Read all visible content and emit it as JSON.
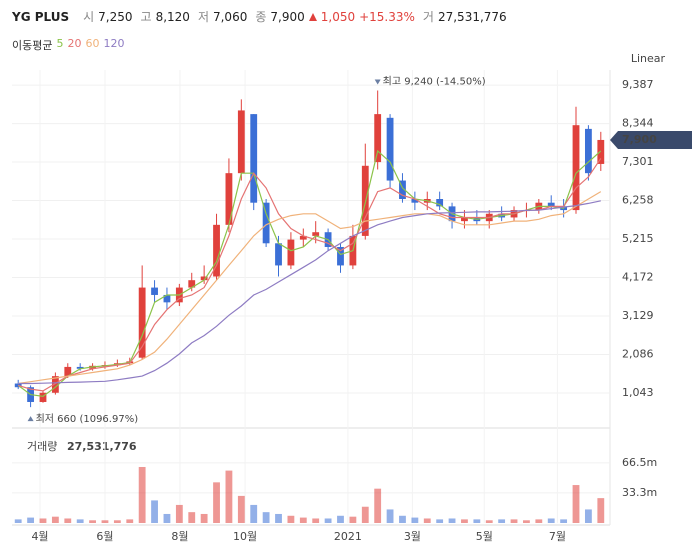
{
  "header": {
    "name": "YG PLUS",
    "open_label": "시",
    "open": "7,250",
    "high_label": "고",
    "high": "8,120",
    "low_label": "저",
    "low": "7,060",
    "close_label": "종",
    "close": "7,900",
    "change": "1,050",
    "change_pct": "+15.33%",
    "volume_label": "거",
    "volume": "27,531,776"
  },
  "chart_data": {
    "type": "candlestick",
    "scale_label": "Linear",
    "ma_title": "이동평균",
    "open": [
      1300,
      1200,
      800,
      1050,
      1500,
      1750,
      1700,
      1780,
      1800,
      1850,
      2000,
      3900,
      3700,
      3500,
      3900,
      4100,
      4200,
      5600,
      7000,
      8600,
      6200,
      5100,
      4500,
      5200,
      5300,
      5400,
      5000,
      4500,
      5300,
      7300,
      8500,
      6800,
      6300,
      6200,
      6300,
      6100,
      5700,
      5800,
      5700,
      5900,
      5800,
      6000,
      6000,
      6200,
      6100,
      6000,
      8200,
      7250
    ],
    "high": [
      1400,
      1250,
      1100,
      1600,
      1850,
      1850,
      1850,
      1900,
      1950,
      2000,
      4500,
      4100,
      3900,
      4000,
      4300,
      4500,
      5900,
      7400,
      9000,
      8600,
      6300,
      5300,
      5400,
      5500,
      5700,
      5500,
      5100,
      5600,
      7800,
      9240,
      8600,
      7000,
      6500,
      6500,
      6500,
      6200,
      6000,
      6000,
      6000,
      6100,
      6100,
      6200,
      6300,
      6400,
      6300,
      8800,
      8300,
      8120
    ],
    "low": [
      1150,
      660,
      780,
      1000,
      1450,
      1650,
      1650,
      1700,
      1750,
      1800,
      1950,
      3500,
      3300,
      3400,
      3800,
      4000,
      4100,
      5400,
      6800,
      6000,
      5000,
      4200,
      4400,
      5000,
      5100,
      4900,
      4300,
      4400,
      5200,
      7100,
      6600,
      6200,
      6000,
      6000,
      6000,
      5500,
      5500,
      5600,
      5500,
      5700,
      5700,
      5800,
      5900,
      6000,
      5800,
      5900,
      6800,
      7060
    ],
    "close": [
      1200,
      800,
      1050,
      1500,
      1750,
      1700,
      1780,
      1800,
      1850,
      1900,
      3900,
      3700,
      3500,
      3900,
      4100,
      4200,
      5600,
      7000,
      8700,
      6200,
      5100,
      4500,
      5200,
      5300,
      5400,
      5000,
      4500,
      5300,
      7200,
      8600,
      6800,
      6300,
      6200,
      6300,
      6100,
      5700,
      5800,
      5700,
      5900,
      5800,
      6000,
      6000,
      6200,
      6100,
      6000,
      8300,
      7000,
      7900
    ],
    "up_color": "#e0413c",
    "down_color": "#3b6fd6",
    "xlim": [
      -0.5,
      47.5
    ],
    "xticks": [
      {
        "value": 1.76,
        "label": "4월"
      },
      {
        "value": 7.0,
        "label": "6월"
      },
      {
        "value": 13.05,
        "label": "8월"
      },
      {
        "value": 18.3,
        "label": "10월"
      },
      {
        "value": 26.6,
        "label": "2021"
      },
      {
        "value": 31.8,
        "label": "3월"
      },
      {
        "value": 37.6,
        "label": "5월"
      },
      {
        "value": 43.5,
        "label": "7월"
      }
    ],
    "ylim": [
      95,
      9660
    ],
    "yticks": [
      {
        "value": 1043,
        "label": "1,043"
      },
      {
        "value": 2086,
        "label": "2,086"
      },
      {
        "value": 3129,
        "label": "3,129"
      },
      {
        "value": 4172,
        "label": "4,172"
      },
      {
        "value": 5215,
        "label": "5,215"
      },
      {
        "value": 6258,
        "label": "6,258"
      },
      {
        "value": 7301,
        "label": "7,301"
      },
      {
        "value": 8344,
        "label": "8,344"
      },
      {
        "value": 9387,
        "label": "9,387"
      }
    ],
    "grid": true,
    "moving_averages": [
      {
        "name": "5",
        "color": "#8bc34a",
        "values": [
          1250,
          1000,
          950,
          1200,
          1500,
          1700,
          1750,
          1780,
          1820,
          1870,
          2600,
          3500,
          3700,
          3700,
          3900,
          4100,
          4600,
          5600,
          7000,
          7000,
          5900,
          5100,
          4900,
          5000,
          5300,
          5200,
          4800,
          4900,
          6200,
          7600,
          7300,
          6600,
          6300,
          6250,
          6150,
          5900,
          5800,
          5750,
          5800,
          5850,
          5900,
          6000,
          6100,
          6100,
          6050,
          7000,
          7300,
          7600
        ]
      },
      {
        "name": "20",
        "color": "#e57373",
        "values": [
          1250,
          1150,
          1100,
          1300,
          1500,
          1600,
          1700,
          1750,
          1800,
          1850,
          2300,
          2900,
          3300,
          3600,
          3700,
          3900,
          4500,
          5300,
          6300,
          7000,
          6600,
          5900,
          5500,
          5300,
          5200,
          5100,
          4900,
          5100,
          5800,
          6500,
          6600,
          6400,
          6300,
          6100,
          5900,
          5800,
          5800,
          5800,
          5800,
          5900,
          5900,
          6000,
          6000,
          6100,
          6100,
          6600,
          6900,
          7400
        ]
      },
      {
        "name": "60",
        "color": "#f0b27a",
        "values": [
          1300,
          1350,
          1400,
          1450,
          1500,
          1550,
          1600,
          1650,
          1700,
          1800,
          1950,
          2150,
          2500,
          2900,
          3300,
          3700,
          4100,
          4500,
          4900,
          5300,
          5600,
          5750,
          5850,
          5900,
          5900,
          5700,
          5500,
          5550,
          5700,
          5750,
          5800,
          5850,
          5900,
          5900,
          5850,
          5700,
          5600,
          5600,
          5600,
          5650,
          5700,
          5700,
          5750,
          5850,
          5900,
          6100,
          6300,
          6500
        ]
      },
      {
        "name": "120",
        "color": "#8e7cc3",
        "values": [
          1300,
          1300,
          1310,
          1320,
          1330,
          1340,
          1350,
          1360,
          1400,
          1450,
          1500,
          1650,
          1850,
          2100,
          2400,
          2600,
          2850,
          3150,
          3400,
          3700,
          3850,
          4050,
          4250,
          4450,
          4650,
          4900,
          5100,
          5300,
          5450,
          5600,
          5700,
          5800,
          5850,
          5900,
          5920,
          5930,
          5940,
          5950,
          5950,
          5960,
          5970,
          5990,
          6000,
          6040,
          6080,
          6120,
          6180,
          6250
        ]
      }
    ],
    "annotations": {
      "high": "최고 9,240 (-14.50%)",
      "low": "최저 660 (1096.97%)"
    },
    "volume": {
      "title": "거래량",
      "values": [
        4000000,
        6000000,
        5000000,
        7000000,
        5000000,
        4000000,
        3000000,
        3000000,
        3000000,
        4000000,
        62000000,
        25000000,
        10000000,
        20000000,
        12000000,
        10000000,
        45000000,
        58000000,
        30000000,
        20000000,
        12000000,
        10000000,
        8000000,
        6000000,
        5000000,
        5000000,
        8000000,
        7000000,
        18000000,
        38000000,
        15000000,
        8000000,
        6000000,
        5000000,
        4000000,
        5000000,
        4000000,
        4000000,
        3000000,
        4000000,
        4000000,
        3000000,
        4000000,
        5000000,
        4000000,
        42000000,
        15000000,
        27531776
      ],
      "ylim": [
        0,
        97400000
      ],
      "yticks": [
        {
          "value": 66500000,
          "label": "66.5m"
        },
        {
          "value": 33300000,
          "label": "33.3m"
        }
      ]
    }
  }
}
